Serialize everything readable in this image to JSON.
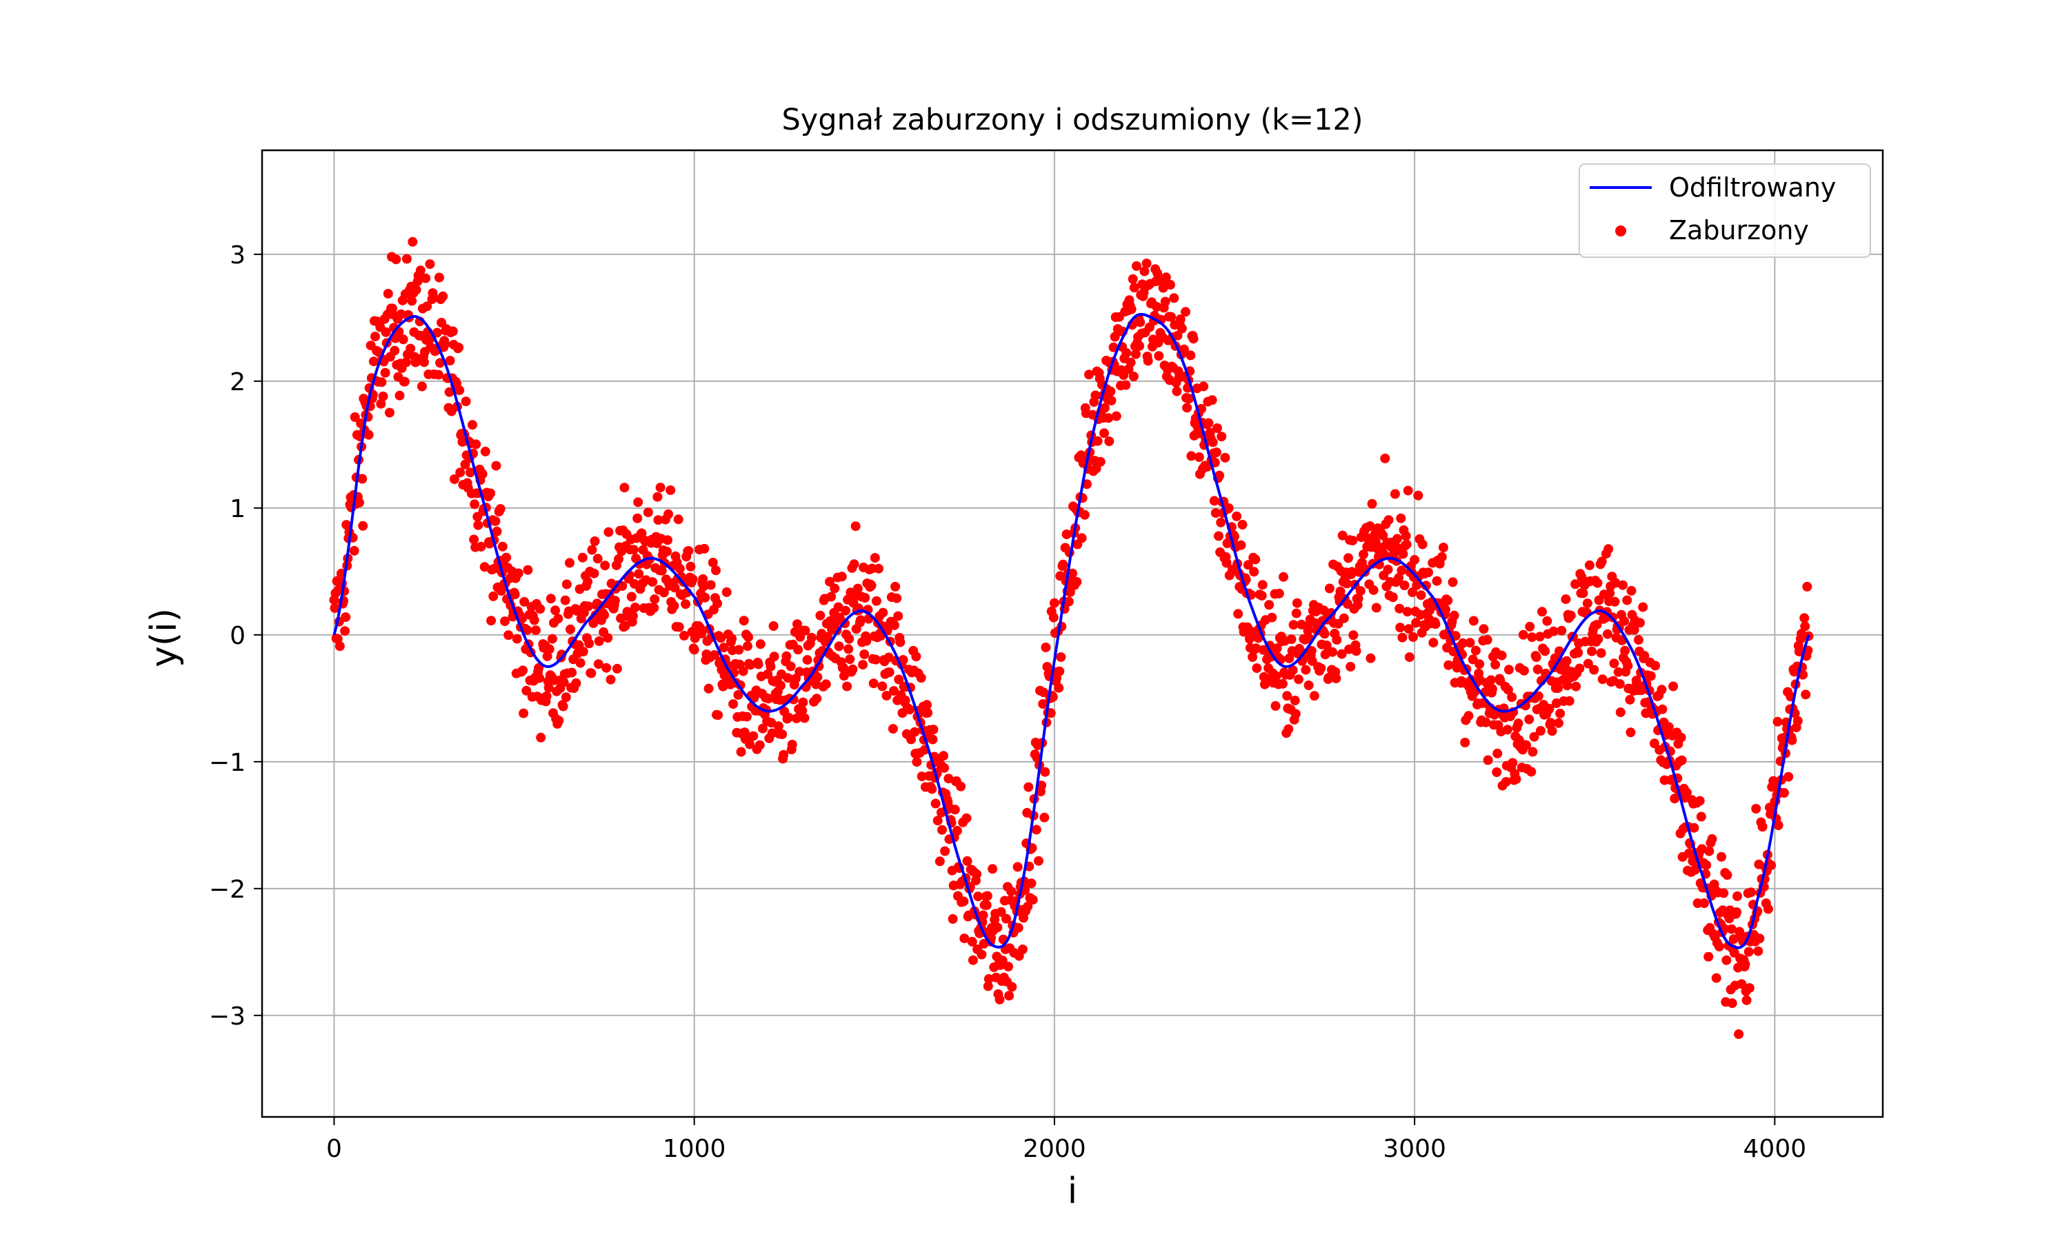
{
  "chart_data": {
    "type": "line+scatter",
    "title": "Sygnał zaburzony i odszumiony (k=12)",
    "xlabel": "i",
    "ylabel": "y(i)",
    "xlim": [
      -200,
      4300
    ],
    "ylim": [
      -3.8,
      3.82
    ],
    "x_ticks": [
      0,
      1000,
      2000,
      3000,
      4000
    ],
    "x_tick_labels": [
      "0",
      "1000",
      "2000",
      "3000",
      "4000"
    ],
    "y_ticks": [
      -3,
      -2,
      -1,
      0,
      1,
      2,
      3
    ],
    "y_tick_labels": [
      "−3",
      "−2",
      "−1",
      "0",
      "1",
      "2",
      "3"
    ],
    "grid": true,
    "legend_position": "top-right",
    "x_range": [
      0,
      4095
    ],
    "series": [
      {
        "name": "Odfiltrowany",
        "kind": "line",
        "color": "#0000ff",
        "x": [
          0,
          100,
          210,
          300,
          400,
          500,
          590,
          700,
          870,
          1000,
          1100,
          1200,
          1300,
          1450,
          1550,
          1650,
          1750,
          1830,
          1900,
          2000,
          2100,
          2200,
          2270,
          2350,
          2450,
          2550,
          2640,
          2750,
          2920,
          3050,
          3150,
          3240,
          3350,
          3500,
          3600,
          3700,
          3800,
          3880,
          3950,
          4095
        ],
        "y": [
          0.0,
          1.9,
          2.5,
          2.2,
          1.2,
          0.2,
          -0.25,
          0.1,
          0.6,
          0.3,
          -0.3,
          -0.6,
          -0.4,
          0.18,
          -0.1,
          -0.9,
          -1.9,
          -2.45,
          -2.1,
          -0.2,
          1.5,
          2.4,
          2.5,
          2.2,
          1.2,
          0.2,
          -0.25,
          0.1,
          0.6,
          0.3,
          -0.3,
          -0.6,
          -0.4,
          0.18,
          -0.1,
          -0.9,
          -1.9,
          -2.45,
          -2.1,
          0.0
        ]
      },
      {
        "name": "Zaburzony",
        "kind": "scatter",
        "color": "#ff0000",
        "points": 4096,
        "noise_amplitude": 1.0,
        "y_min": -3.48,
        "y_max": 3.48
      }
    ]
  }
}
